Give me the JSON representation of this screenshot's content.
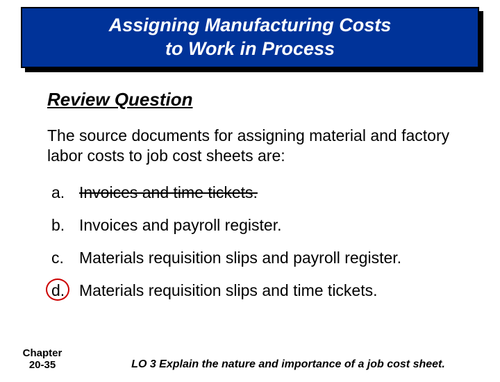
{
  "title": {
    "line1": "Assigning Manufacturing Costs",
    "line2": "to Work in Process",
    "bg_color": "#003399",
    "text_color": "#ffffff",
    "border_color": "#000000",
    "shadow_color": "#000000",
    "fontsize": 27
  },
  "section_heading": "Review Question",
  "question": "The source documents for assigning material and factory labor costs to job cost sheets are:",
  "options": [
    {
      "letter": "a.",
      "text": "Invoices and time tickets.",
      "strike": true,
      "circled": false
    },
    {
      "letter": "b.",
      "text": "Invoices and payroll register.",
      "strike": false,
      "circled": false
    },
    {
      "letter": "c.",
      "text": "Materials requisition slips and payroll register.",
      "strike": false,
      "circled": false
    },
    {
      "letter": "d.",
      "text": "Materials requisition slips and time tickets.",
      "strike": false,
      "circled": true
    }
  ],
  "footer": {
    "chapter_label": "Chapter",
    "chapter_number": "20-35",
    "learning_objective": "LO 3  Explain the nature and importance of a job cost sheet."
  },
  "colors": {
    "page_bg": "#ffffff",
    "text": "#000000",
    "circle": "#cc0000"
  },
  "typography": {
    "body_fontsize": 23,
    "heading_fontsize": 26,
    "footer_fontsize": 15,
    "lo_fontsize": 16,
    "font_family": "Comic Sans MS"
  }
}
